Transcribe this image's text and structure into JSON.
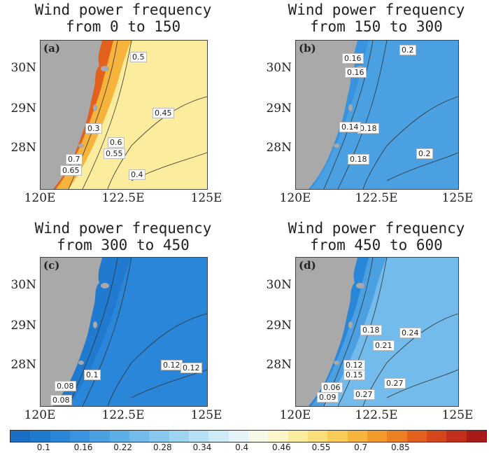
{
  "chart_data": [
    {
      "type": "heatmap",
      "panel_label": "(a)",
      "title": [
        "Wind power frequency",
        "from 0 to 150"
      ],
      "xticks": [
        "120E",
        "122.5E",
        "125E"
      ],
      "yticks": [
        "30N",
        "29N",
        "28N"
      ],
      "xlim": [
        120,
        125
      ],
      "contour_labels": [
        "0.5",
        "0.45",
        "0.4",
        "0.6",
        "0.55",
        "0.7",
        "0.65",
        "0.3"
      ],
      "fill_value": 0.5,
      "coast_value": 0.8
    },
    {
      "type": "heatmap",
      "panel_label": "(b)",
      "title": [
        "Wind power frequency",
        "from 150 to 300"
      ],
      "xticks": [
        "120E",
        "122.5E",
        "125E"
      ],
      "yticks": [
        "30N",
        "29N",
        "28N"
      ],
      "xlim": [
        120,
        125
      ],
      "contour_labels": [
        "0.2",
        "0.16",
        "0.16",
        "0.18",
        "0.18",
        "0.2",
        "0.14"
      ],
      "fill_value": 0.2,
      "coast_value": 0.16
    },
    {
      "type": "heatmap",
      "panel_label": "(c)",
      "title": [
        "Wind power frequency",
        "from 300 to 450"
      ],
      "xticks": [
        "120E",
        "122.5E",
        "125E"
      ],
      "yticks": [
        "30N",
        "29N",
        "28N"
      ],
      "xlim": [
        120,
        125
      ],
      "contour_labels": [
        "0.12",
        "0.12",
        "0.1",
        "0.08",
        "0.08"
      ],
      "fill_value": 0.12,
      "coast_value": 0.1
    },
    {
      "type": "heatmap",
      "panel_label": "(d)",
      "title": [
        "Wind power frequency",
        "from 450 to 600"
      ],
      "xticks": [
        "120E",
        "122.5E",
        "125E"
      ],
      "yticks": [
        "30N",
        "29N",
        "28N"
      ],
      "xlim": [
        120,
        125
      ],
      "contour_labels": [
        "0.24",
        "0.18",
        "0.21",
        "0.12",
        "0.15",
        "0.06",
        "0.09",
        "0.27",
        "0.27"
      ],
      "fill_value": 0.25,
      "coast_value": 0.12
    }
  ],
  "colorbar": {
    "tick_labels": [
      "0.1",
      "0.16",
      "0.22",
      "0.28",
      "0.34",
      "0.4",
      "0.46",
      "0.55",
      "0.7",
      "0.85"
    ],
    "colors": [
      "#1a6fc4",
      "#1f7ad0",
      "#2a86d8",
      "#3a93de",
      "#4ba0e2",
      "#5daee7",
      "#72bbea",
      "#88c8ee",
      "#9fd4f1",
      "#b6e0f4",
      "#cdeaf6",
      "#e3f3f7",
      "#f6f9e6",
      "#fdf6c8",
      "#fcec9e",
      "#fbde79",
      "#f9cc57",
      "#f6b43d",
      "#f29a2c",
      "#ec7f22",
      "#e2611d",
      "#d6461b",
      "#c22e1a",
      "#a81b19"
    ],
    "values": [
      0.07,
      0.1,
      0.13,
      0.16,
      0.19,
      0.22,
      0.25,
      0.28,
      0.31,
      0.34,
      0.37,
      0.4,
      0.43,
      0.46,
      0.5,
      0.55,
      0.6,
      0.65,
      0.7,
      0.75,
      0.8,
      0.85,
      0.9,
      0.95
    ]
  },
  "land_color": "#a9a9a9"
}
